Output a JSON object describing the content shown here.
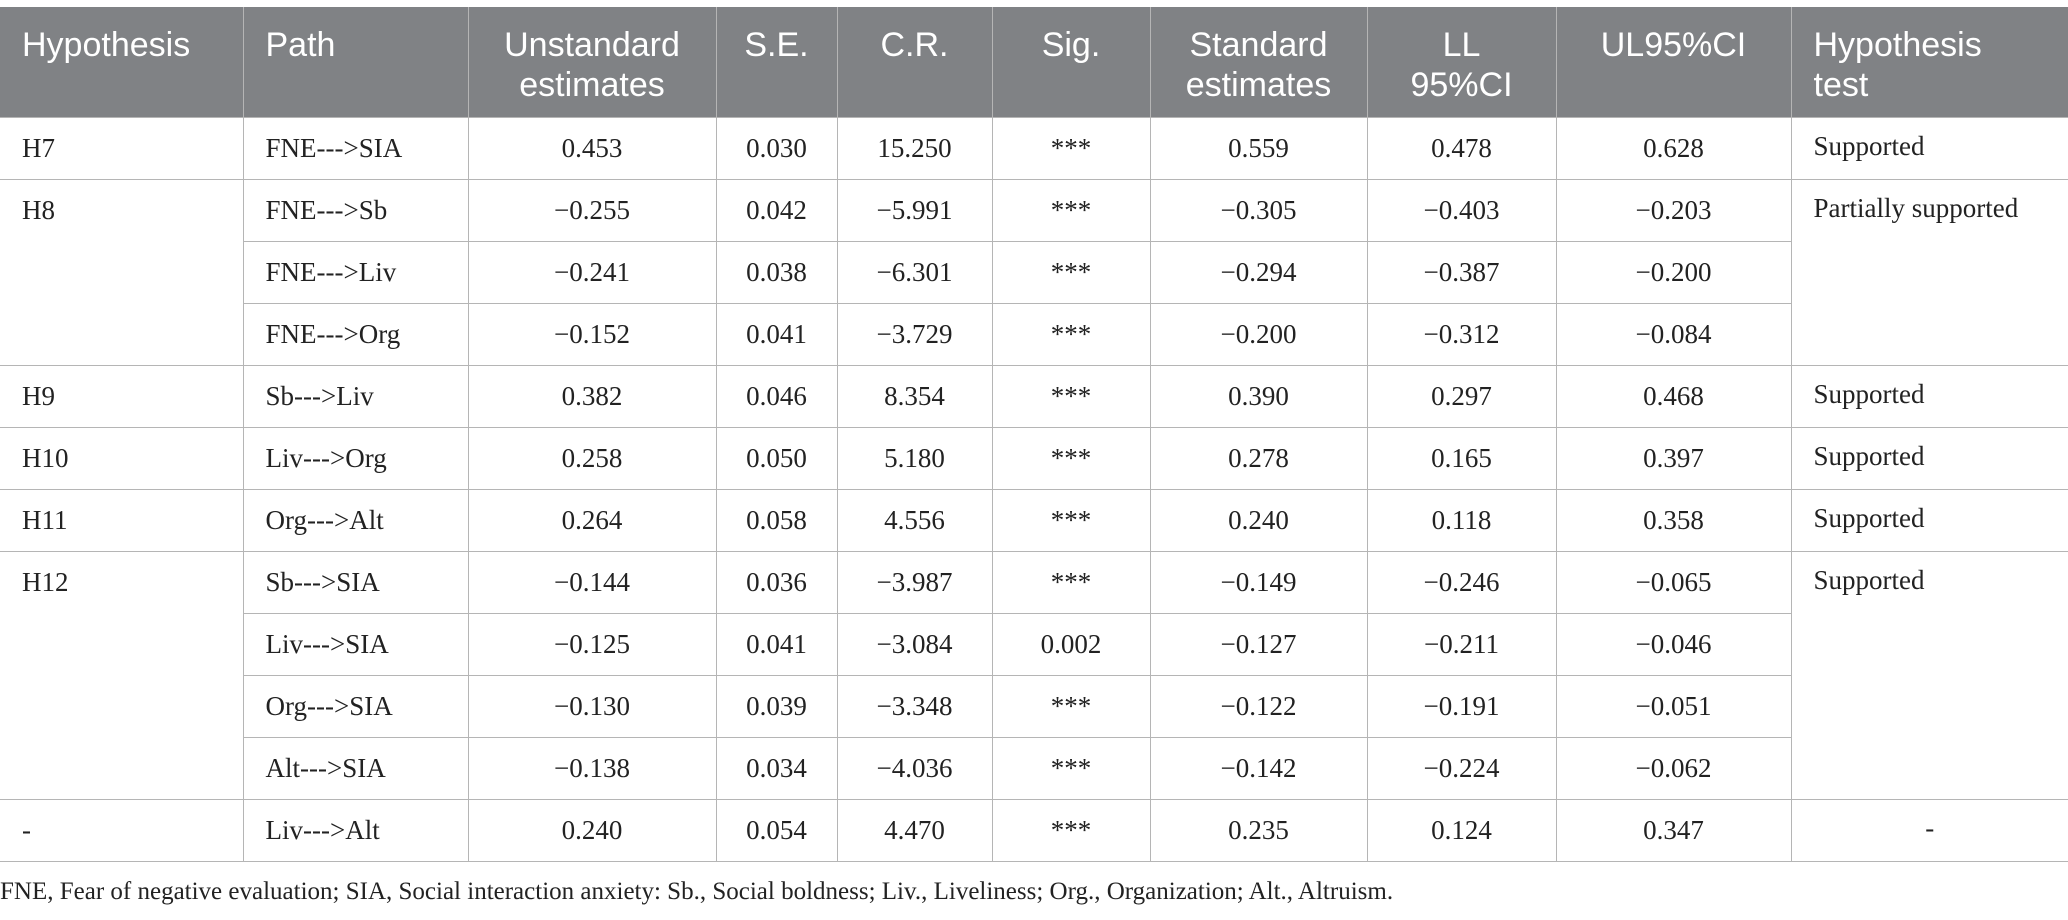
{
  "headers": [
    "Hypothesis",
    "Path",
    "Unstandard estimates",
    "S.E.",
    "C.R.",
    "Sig.",
    "Standard estimates",
    "LL 95%CI",
    "UL95%CI",
    "Hypothesis test"
  ],
  "groups": [
    {
      "hypothesis": "H7",
      "test": "Supported",
      "rows": [
        [
          "FNE--->SIA",
          "0.453",
          "0.030",
          "15.250",
          "***",
          "0.559",
          "0.478",
          "0.628"
        ]
      ]
    },
    {
      "hypothesis": "H8",
      "test": "Partially supported",
      "rows": [
        [
          "FNE--->Sb",
          "−0.255",
          "0.042",
          "−5.991",
          "***",
          "−0.305",
          "−0.403",
          "−0.203"
        ],
        [
          "FNE--->Liv",
          "−0.241",
          "0.038",
          "−6.301",
          "***",
          "−0.294",
          "−0.387",
          "−0.200"
        ],
        [
          "FNE--->Org",
          "−0.152",
          "0.041",
          "−3.729",
          "***",
          "−0.200",
          "−0.312",
          "−0.084"
        ]
      ]
    },
    {
      "hypothesis": "H9",
      "test": "Supported",
      "rows": [
        [
          "Sb--->Liv",
          "0.382",
          "0.046",
          "8.354",
          "***",
          "0.390",
          "0.297",
          "0.468"
        ]
      ]
    },
    {
      "hypothesis": "H10",
      "test": "Supported",
      "rows": [
        [
          "Liv--->Org",
          "0.258",
          "0.050",
          "5.180",
          "***",
          "0.278",
          "0.165",
          "0.397"
        ]
      ]
    },
    {
      "hypothesis": "H11",
      "test": "Supported",
      "rows": [
        [
          "Org--->Alt",
          "0.264",
          "0.058",
          "4.556",
          "***",
          "0.240",
          "0.118",
          "0.358"
        ]
      ]
    },
    {
      "hypothesis": "H12",
      "test": "Supported",
      "rows": [
        [
          "Sb--->SIA",
          "−0.144",
          "0.036",
          "−3.987",
          "***",
          "−0.149",
          "−0.246",
          "−0.065"
        ],
        [
          "Liv--->SIA",
          "−0.125",
          "0.041",
          "−3.084",
          "0.002",
          "−0.127",
          "−0.211",
          "−0.046"
        ],
        [
          "Org--->SIA",
          "−0.130",
          "0.039",
          "−3.348",
          "***",
          "−0.122",
          "−0.191",
          "−0.051"
        ],
        [
          "Alt--->SIA",
          "−0.138",
          "0.034",
          "−4.036",
          "***",
          "−0.142",
          "−0.224",
          "−0.062"
        ]
      ]
    },
    {
      "hypothesis": "-",
      "test": "-",
      "rows": [
        [
          "Liv--->Alt",
          "0.240",
          "0.054",
          "4.470",
          "***",
          "0.235",
          "0.124",
          "0.347"
        ]
      ]
    }
  ],
  "note": "FNE, Fear of negative evaluation; SIA, Social interaction anxiety: Sb., Social boldness; Liv., Liveliness; Org., Organization; Alt., Altruism."
}
